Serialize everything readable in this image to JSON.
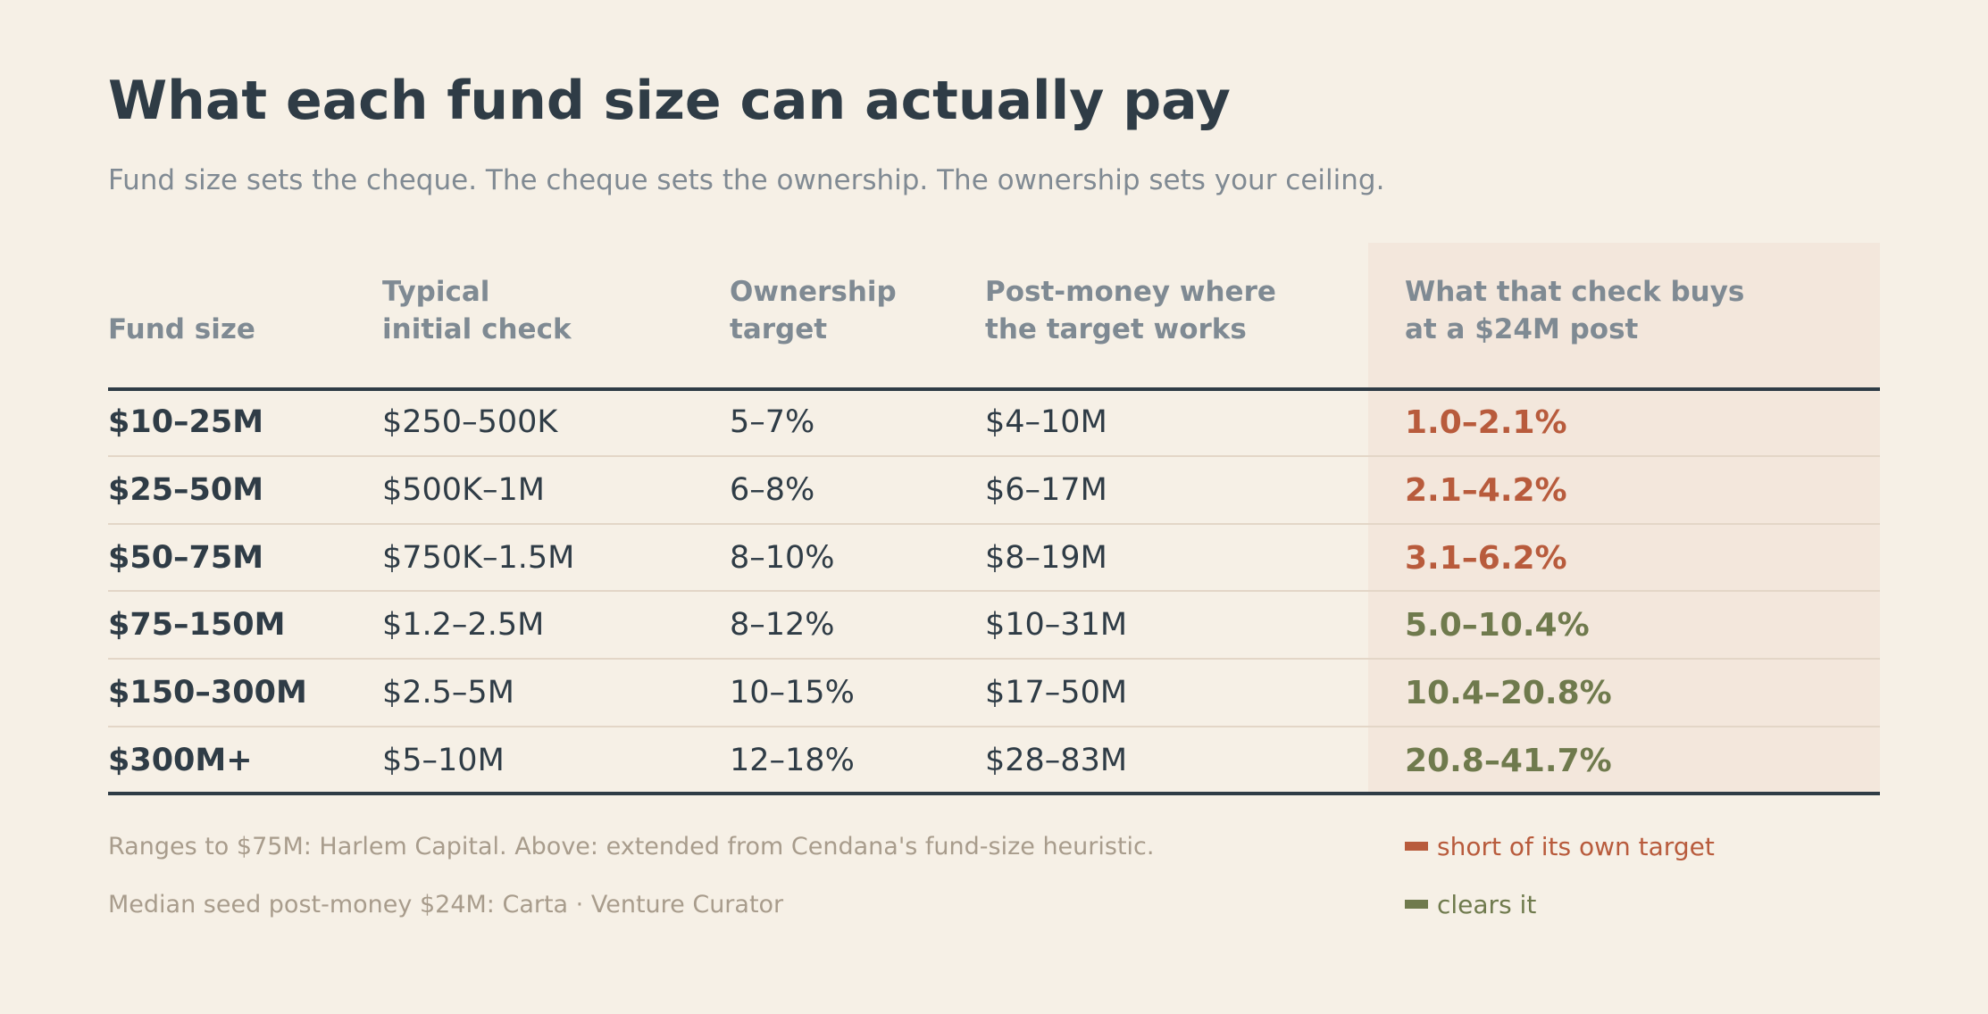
{
  "title": "What each fund size can actually pay",
  "subtitle": "Fund size sets the cheque. The cheque sets the ownership. The ownership sets your ceiling.",
  "colors": {
    "background": "#f6f0e6",
    "text": "#2f3c46",
    "muted": "#7f8a93",
    "highlight_column": "#f3e7dc",
    "short": "#b85b3c",
    "clears": "#6f7a4d"
  },
  "table": {
    "headers": {
      "fund_size": "Fund size",
      "check_line1": "Typical",
      "check_line2": "initial check",
      "own_line1": "Ownership",
      "own_line2": "target",
      "post_line1": "Post-money where",
      "post_line2": "the target works",
      "buys_line1": "What that check buys",
      "buys_line2": "at a $24M post"
    },
    "rows": [
      {
        "fund_size": "$10–25M",
        "check": "$250–500K",
        "ownership": "5–7%",
        "post_money": "$4–10M",
        "buys": "1.0–2.1%",
        "status": "short"
      },
      {
        "fund_size": "$25–50M",
        "check": "$500K–1M",
        "ownership": "6–8%",
        "post_money": "$6–17M",
        "buys": "2.1–4.2%",
        "status": "short"
      },
      {
        "fund_size": "$50–75M",
        "check": "$750K–1.5M",
        "ownership": "8–10%",
        "post_money": "$8–19M",
        "buys": "3.1–6.2%",
        "status": "short"
      },
      {
        "fund_size": "$75–150M",
        "check": "$1.2–2.5M",
        "ownership": "8–12%",
        "post_money": "$10–31M",
        "buys": "5.0–10.4%",
        "status": "clears"
      },
      {
        "fund_size": "$150–300M",
        "check": "$2.5–5M",
        "ownership": "10–15%",
        "post_money": "$17–50M",
        "buys": "10.4–20.8%",
        "status": "clears"
      },
      {
        "fund_size": "$300M+",
        "check": "$5–10M",
        "ownership": "12–18%",
        "post_money": "$28–83M",
        "buys": "20.8–41.7%",
        "status": "clears"
      }
    ]
  },
  "footer": {
    "source_line1": "Ranges to $75M: Harlem Capital.  Above: extended from Cendana's fund-size heuristic.",
    "source_line2": "Median seed post-money $24M: Carta   ·   Venture Curator"
  },
  "legend": {
    "short_label": "short of its own target",
    "clears_label": "clears it"
  }
}
